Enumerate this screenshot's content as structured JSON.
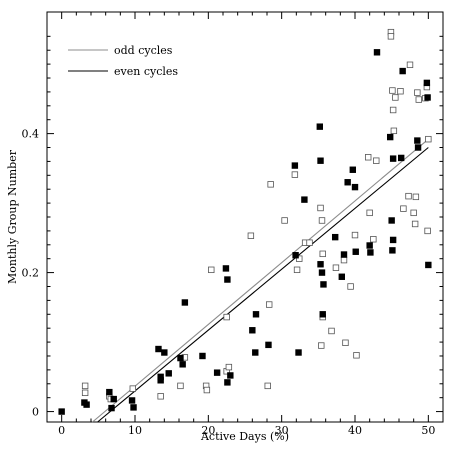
{
  "chart_data": {
    "type": "scatter",
    "xlabel": "Active Days (%)",
    "ylabel": "Monthly Group Number",
    "xlim": [
      -2,
      52
    ],
    "ylim": [
      -0.015,
      0.575
    ],
    "xticks": [
      0,
      10,
      20,
      30,
      40,
      50
    ],
    "yticks": [
      0,
      0.2,
      0.4
    ],
    "ytick_labels": [
      "0",
      "0.2",
      "0.4"
    ],
    "grid": false,
    "legend": {
      "placement": "top-left",
      "entries": [
        {
          "label": "odd cycles",
          "color": "#8c8c8c",
          "line_style": "solid"
        },
        {
          "label": "even cycles",
          "color": "#000000",
          "line_style": "solid"
        }
      ]
    },
    "fit_lines": [
      {
        "label": "odd cycles",
        "color": "#8c8c8c",
        "x": [
          4.2,
          50
        ],
        "y": [
          -0.015,
          0.392
        ]
      },
      {
        "label": "even cycles",
        "color": "#000000",
        "x": [
          4.9,
          50
        ],
        "y": [
          -0.015,
          0.38
        ]
      }
    ],
    "series": [
      {
        "marker": "open-square",
        "x": [
          3.2,
          3.2,
          6.5,
          6.7,
          9.7,
          13.5,
          16.2,
          16.8,
          19.7,
          19.8,
          20.4,
          22.5,
          22.5,
          22.8,
          25.8,
          28.1,
          28.5,
          28.3,
          30.4,
          31.8,
          32.1,
          32.4,
          33.2,
          33.8,
          35.3,
          35.5,
          35.4,
          35.6,
          35.6,
          36.8,
          37.4,
          38.5,
          38.7,
          39.4,
          40.0,
          40.2,
          41.8,
          42.0,
          42.5,
          42.9,
          44.9,
          44.9,
          45.1,
          45.2,
          45.3,
          45.5,
          46.2,
          46.6,
          47.3,
          47.5,
          48.0,
          48.2,
          48.3,
          48.5,
          48.7,
          49.6,
          49.8,
          49.9,
          50.0
        ],
        "y": [
          0.027,
          0.037,
          0.022,
          0.018,
          0.033,
          0.022,
          0.037,
          0.078,
          0.037,
          0.031,
          0.204,
          0.136,
          0.058,
          0.064,
          0.253,
          0.037,
          0.327,
          0.154,
          0.275,
          0.341,
          0.204,
          0.22,
          0.243,
          0.243,
          0.293,
          0.275,
          0.095,
          0.136,
          0.227,
          0.116,
          0.207,
          0.218,
          0.099,
          0.18,
          0.254,
          0.081,
          0.366,
          0.286,
          0.248,
          0.361,
          0.546,
          0.54,
          0.462,
          0.434,
          0.404,
          0.452,
          0.461,
          0.292,
          0.31,
          0.499,
          0.286,
          0.27,
          0.309,
          0.459,
          0.449,
          0.451,
          0.467,
          0.26,
          0.392
        ]
      },
      {
        "marker": "filled-square",
        "x": [
          0.0,
          3.1,
          3.4,
          6.5,
          6.8,
          7.1,
          9.6,
          9.8,
          13.2,
          13.5,
          13.5,
          14.0,
          14.6,
          16.2,
          16.5,
          16.8,
          19.2,
          21.2,
          22.4,
          22.6,
          22.6,
          23.0,
          26.0,
          26.4,
          26.5,
          28.2,
          31.8,
          31.9,
          32.3,
          33.1,
          35.2,
          35.3,
          35.3,
          35.5,
          35.6,
          35.7,
          37.3,
          38.2,
          38.5,
          39.0,
          39.7,
          40.0,
          40.1,
          42.0,
          42.1,
          43.0,
          44.8,
          45.0,
          45.1,
          45.2,
          45.2,
          46.3,
          46.5,
          48.5,
          48.6,
          49.8,
          49.9,
          50.0
        ],
        "y": [
          0.0,
          0.013,
          0.01,
          0.028,
          0.005,
          0.018,
          0.016,
          0.006,
          0.09,
          0.05,
          0.045,
          0.085,
          0.055,
          0.077,
          0.068,
          0.157,
          0.08,
          0.056,
          0.206,
          0.19,
          0.042,
          0.052,
          0.117,
          0.085,
          0.14,
          0.096,
          0.354,
          0.225,
          0.085,
          0.305,
          0.41,
          0.361,
          0.212,
          0.2,
          0.14,
          0.183,
          0.251,
          0.194,
          0.226,
          0.33,
          0.348,
          0.323,
          0.23,
          0.239,
          0.229,
          0.517,
          0.395,
          0.275,
          0.232,
          0.247,
          0.364,
          0.365,
          0.49,
          0.39,
          0.38,
          0.473,
          0.452,
          0.211
        ]
      }
    ]
  }
}
